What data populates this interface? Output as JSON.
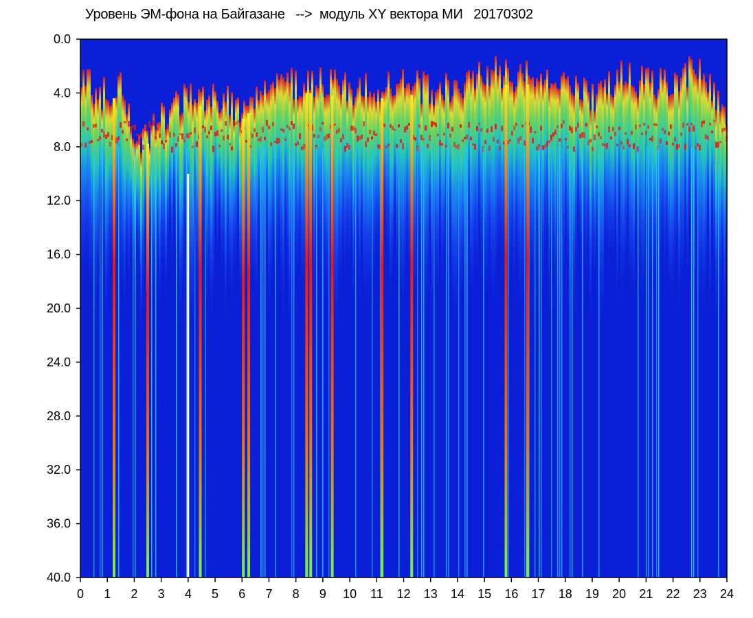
{
  "chart_data": {
    "type": "heatmap",
    "title": "Уровень ЭМ-фона на Байгазане   -->  модуль XY вектора МИ   20170302",
    "xlabel": "",
    "ylabel": "",
    "xlim": [
      0,
      24
    ],
    "ylim": [
      0,
      40
    ],
    "y_inverted": true,
    "x_ticks": [
      "0",
      "1",
      "2",
      "3",
      "4",
      "5",
      "6",
      "7",
      "8",
      "9",
      "10",
      "11",
      "12",
      "13",
      "14",
      "15",
      "16",
      "17",
      "18",
      "19",
      "20",
      "21",
      "22",
      "23",
      "24"
    ],
    "y_ticks": [
      "0.0",
      "4.0",
      "8.0",
      "12.0",
      "16.0",
      "20.0",
      "24.0",
      "28.0",
      "32.0",
      "36.0",
      "40.0"
    ],
    "colorscale": [
      "#0a1fd6",
      "#1f66ff",
      "#22c8ff",
      "#2cf0b0",
      "#7bf24a",
      "#f4f020",
      "#f07010",
      "#e81818"
    ],
    "background_color": "#0a1fd6",
    "signal_onset_level": [
      {
        "x": 0.0,
        "y": 1.8
      },
      {
        "x": 1.0,
        "y": 3.0
      },
      {
        "x": 1.5,
        "y": 1.8
      },
      {
        "x": 2.0,
        "y": 7.0
      },
      {
        "x": 3.0,
        "y": 4.5
      },
      {
        "x": 4.0,
        "y": 3.0
      },
      {
        "x": 5.0,
        "y": 3.0
      },
      {
        "x": 6.0,
        "y": 4.0
      },
      {
        "x": 7.0,
        "y": 2.0
      },
      {
        "x": 8.0,
        "y": 2.0
      },
      {
        "x": 9.0,
        "y": 2.0
      },
      {
        "x": 10.0,
        "y": 2.5
      },
      {
        "x": 11.0,
        "y": 2.5
      },
      {
        "x": 12.0,
        "y": 2.0
      },
      {
        "x": 13.0,
        "y": 2.5
      },
      {
        "x": 14.0,
        "y": 2.5
      },
      {
        "x": 15.0,
        "y": 1.0
      },
      {
        "x": 16.0,
        "y": 1.5
      },
      {
        "x": 17.0,
        "y": 1.3
      },
      {
        "x": 18.0,
        "y": 1.8
      },
      {
        "x": 19.0,
        "y": 3.0
      },
      {
        "x": 20.0,
        "y": 1.5
      },
      {
        "x": 21.0,
        "y": 2.0
      },
      {
        "x": 22.0,
        "y": 2.0
      },
      {
        "x": 23.0,
        "y": 0.6
      },
      {
        "x": 24.0,
        "y": 4.5
      }
    ],
    "red_band_level": 8.0,
    "noise_floor_level": 15.0,
    "strong_lines_x": [
      1.25,
      2.5,
      4.45,
      6.05,
      6.25,
      8.4,
      8.55,
      9.35,
      11.2,
      12.3,
      15.8,
      16.6
    ],
    "white_lines_x": [
      4.0
    ]
  }
}
